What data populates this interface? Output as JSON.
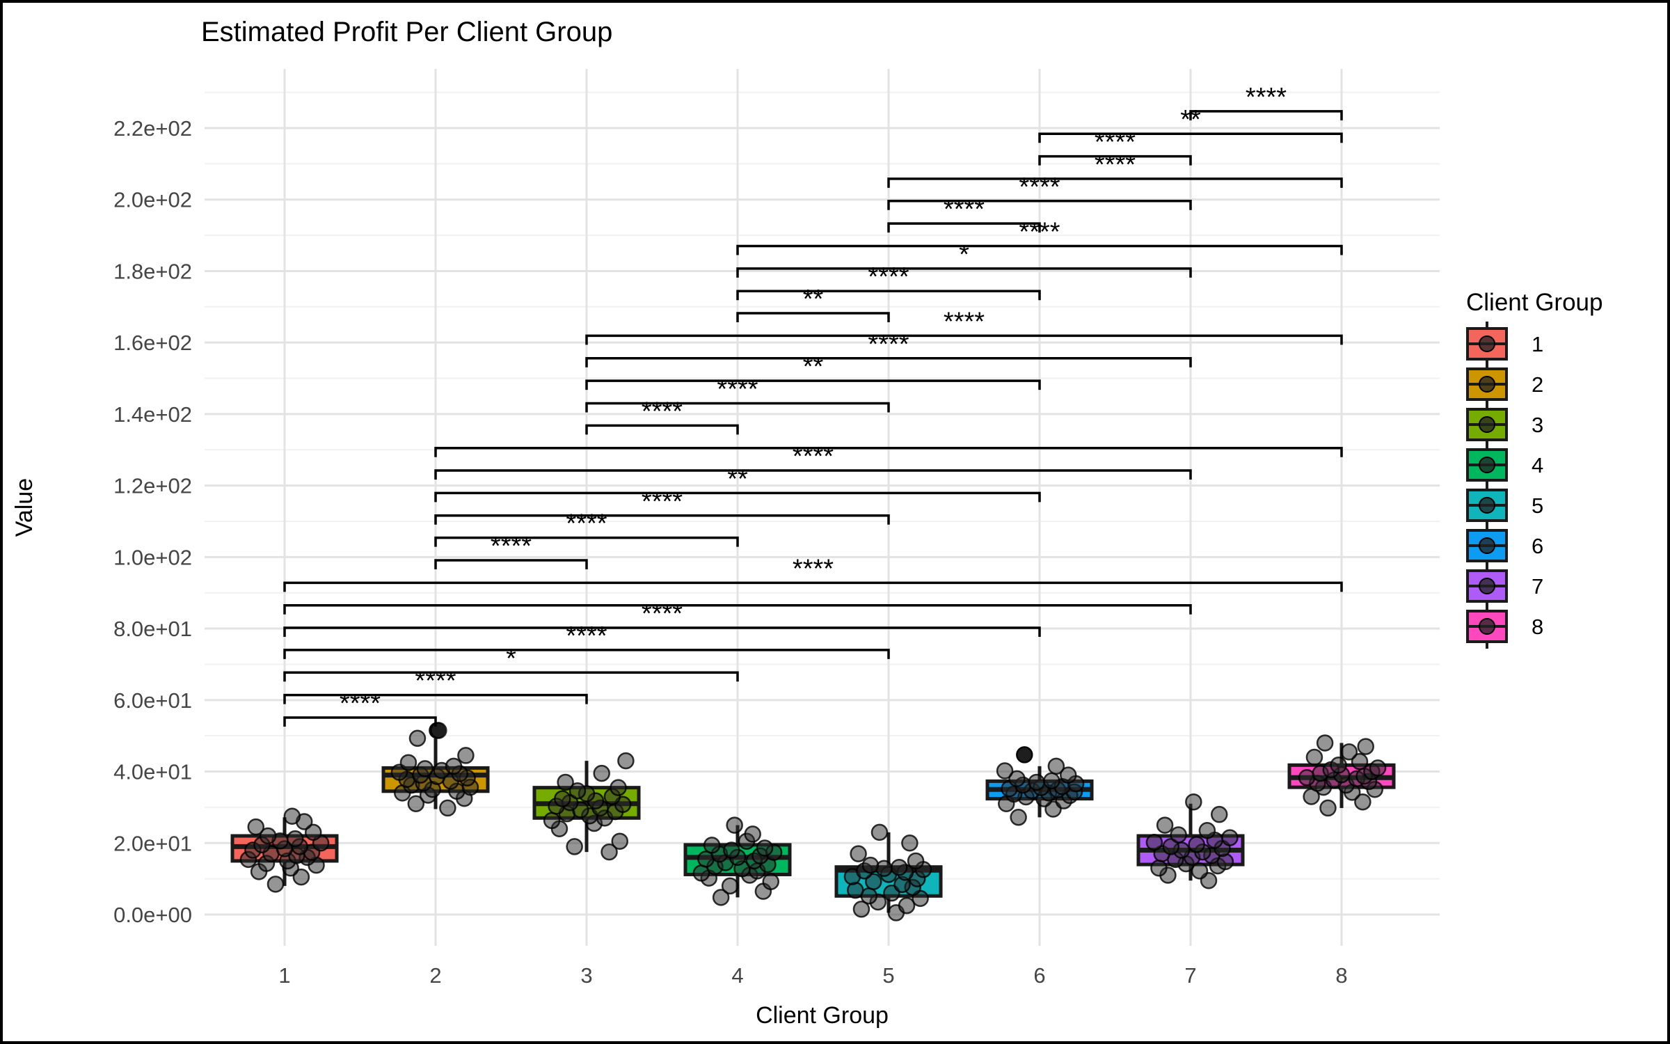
{
  "title": "Estimated Profit Per Client Group",
  "x_axis": {
    "label": "Client Group",
    "ticks": [
      "1",
      "2",
      "3",
      "4",
      "5",
      "6",
      "7",
      "8"
    ]
  },
  "y_axis": {
    "label": "Value",
    "tick_values": [
      0,
      20,
      40,
      60,
      80,
      100,
      120,
      140,
      160,
      180,
      200,
      220
    ],
    "tick_labels": [
      "0.0e+00",
      "2.0e+01",
      "4.0e+01",
      "6.0e+01",
      "8.0e+01",
      "1.0e+02",
      "1.2e+02",
      "1.4e+02",
      "1.6e+02",
      "1.8e+02",
      "2.0e+02",
      "2.2e+02"
    ]
  },
  "legend": {
    "title": "Client Group",
    "items": [
      {
        "label": "1",
        "color": "#F4655C"
      },
      {
        "label": "2",
        "color": "#CD9600"
      },
      {
        "label": "3",
        "color": "#76AB00"
      },
      {
        "label": "4",
        "color": "#00B65E"
      },
      {
        "label": "5",
        "color": "#0FB5BA"
      },
      {
        "label": "6",
        "color": "#0D9CF2"
      },
      {
        "label": "7",
        "color": "#AE5BF7"
      },
      {
        "label": "8",
        "color": "#FF47BE"
      }
    ]
  },
  "chart_data": {
    "type": "boxplot+jitter",
    "title": "Estimated Profit Per Client Group",
    "xlabel": "Client Group",
    "ylabel": "Value",
    "ylim": [
      -9,
      236.5
    ],
    "grid": {
      "major_step": 20,
      "minor_step": 10
    },
    "categories": [
      "1",
      "2",
      "3",
      "4",
      "5",
      "6",
      "7",
      "8"
    ],
    "groups": [
      {
        "name": "1",
        "color": "#F4655C",
        "whisker_lo": 8,
        "q1": 15,
        "median": 19,
        "q3": 22,
        "whisker_hi": 27.2,
        "outliers": [],
        "dx": [
          -0.06,
          0.11,
          -0.17,
          0.04,
          0.21,
          -0.12,
          0.02,
          -0.24,
          0.15,
          0.08,
          -0.09,
          0.18,
          -0.21,
          0.0,
          0.1,
          -0.15,
          0.24,
          -0.03,
          0.07,
          -0.11,
          0.19,
          -0.19,
          0.13,
          0.05
        ],
        "points": [
          8.5,
          10.5,
          12,
          13,
          13.8,
          14.3,
          15,
          15.4,
          16,
          16.5,
          17,
          17.4,
          18,
          18.4,
          19,
          19.5,
          20,
          20.6,
          21.2,
          22,
          23,
          24.5,
          26,
          27.5
        ]
      },
      {
        "name": "2",
        "color": "#CD9600",
        "whisker_lo": 29.5,
        "q1": 34.5,
        "median": 39,
        "q3": 41,
        "whisker_hi": 49.3,
        "outliers": [
          {
            "dx": 0.01,
            "v": 51.5
          }
        ],
        "dx": [
          0.08,
          -0.13,
          0.19,
          -0.05,
          -0.22,
          0.14,
          -0.02,
          0.23,
          -0.16,
          -0.08,
          0.1,
          -0.19,
          0.21,
          0.01,
          -0.1,
          0.16,
          -0.24,
          0.04,
          -0.07,
          0.12,
          -0.18,
          0.2,
          -0.12,
          0.02
        ],
        "points": [
          29.8,
          31,
          32.5,
          33.4,
          34,
          34.5,
          35,
          35.6,
          36.2,
          36.8,
          37.3,
          37.8,
          38.2,
          38.6,
          39,
          39.4,
          39.8,
          40.3,
          40.8,
          41.5,
          42.5,
          44.5,
          49.3,
          51.5
        ]
      },
      {
        "name": "3",
        "color": "#76AB00",
        "whisker_lo": 17.5,
        "q1": 27,
        "median": 31,
        "q3": 35.5,
        "whisker_hi": 43,
        "outliers": [],
        "dx": [
          0.15,
          -0.08,
          0.22,
          -0.18,
          0.05,
          -0.23,
          0.12,
          0.02,
          -0.13,
          0.19,
          -0.04,
          0.09,
          -0.2,
          0.24,
          -0.11,
          0.06,
          -0.16,
          0.17,
          0.0,
          -0.06,
          0.21,
          -0.14,
          0.1,
          0.26
        ],
        "points": [
          17.5,
          19,
          20.5,
          24,
          25.5,
          26.3,
          27,
          27.6,
          28.2,
          28.8,
          29.3,
          29.8,
          30.3,
          30.8,
          31.3,
          31.8,
          32.4,
          33,
          33.8,
          34.6,
          35.5,
          37,
          39.5,
          43
        ]
      },
      {
        "name": "4",
        "color": "#00B65E",
        "whisker_lo": 4.8,
        "q1": 11.2,
        "median": 16,
        "q3": 19.5,
        "whisker_hi": 25,
        "outliers": [],
        "dx": [
          -0.11,
          0.17,
          -0.05,
          0.22,
          -0.19,
          0.08,
          -0.24,
          0.13,
          0.03,
          -0.15,
          0.2,
          -0.08,
          0.11,
          -0.21,
          0.0,
          0.15,
          -0.12,
          0.24,
          -0.04,
          0.18,
          -0.17,
          0.06,
          0.1,
          -0.02
        ],
        "points": [
          4.8,
          6.5,
          8,
          9.2,
          10.2,
          11,
          11.6,
          12.2,
          12.8,
          13.4,
          14,
          14.5,
          15,
          15.5,
          16,
          16.4,
          16.9,
          17.4,
          18,
          18.6,
          19.4,
          20.5,
          22.5,
          25
        ]
      },
      {
        "name": "5",
        "color": "#0FB5BA",
        "whisker_lo": 0.5,
        "q1": 5.2,
        "median": 12.4,
        "q3": 13.3,
        "whisker_hi": 23,
        "outliers": [],
        "dx": [
          0.05,
          -0.18,
          0.12,
          -0.07,
          0.21,
          -0.13,
          0.02,
          -0.22,
          0.16,
          0.09,
          -0.1,
          0.19,
          -0.24,
          0.0,
          0.11,
          -0.16,
          0.23,
          -0.03,
          0.07,
          -0.12,
          0.18,
          -0.2,
          0.14,
          -0.06
        ],
        "points": [
          0.5,
          1.5,
          2.5,
          3.5,
          4.5,
          5.2,
          6,
          6.8,
          7.6,
          8.4,
          9.2,
          10,
          10.6,
          11.2,
          11.8,
          12.2,
          12.6,
          12.9,
          13.2,
          13.8,
          15,
          17,
          20,
          23
        ]
      },
      {
        "name": "6",
        "color": "#0D9CF2",
        "whisker_lo": 27.2,
        "q1": 32.4,
        "median": 35,
        "q3": 37.3,
        "whisker_hi": 41.5,
        "outliers": [
          {
            "dx": -0.1,
            "v": 44.7
          }
        ],
        "dx": [
          -0.14,
          0.09,
          -0.22,
          0.16,
          0.03,
          -0.09,
          0.2,
          -0.17,
          0.06,
          0.23,
          -0.05,
          0.12,
          -0.2,
          0.01,
          0.15,
          -0.11,
          0.24,
          -0.02,
          0.08,
          -0.15,
          0.19,
          -0.23,
          0.11,
          -0.1
        ],
        "points": [
          27.2,
          29.5,
          31,
          31.8,
          32.4,
          32.9,
          33.3,
          33.7,
          34,
          34.3,
          34.6,
          34.9,
          35.2,
          35.5,
          35.8,
          36.2,
          36.6,
          37,
          37.4,
          38,
          39,
          40.2,
          41.5,
          44.7
        ]
      },
      {
        "name": "7",
        "color": "#AE5BF7",
        "whisker_lo": 9.5,
        "q1": 14,
        "median": 18,
        "q3": 22,
        "whisker_hi": 31,
        "outliers": [],
        "dx": [
          0.12,
          -0.15,
          0.06,
          -0.21,
          0.18,
          -0.03,
          0.23,
          -0.1,
          0.01,
          0.14,
          -0.19,
          0.08,
          -0.06,
          0.21,
          -0.13,
          0.04,
          -0.24,
          0.16,
          0.26,
          -0.08,
          0.11,
          -0.17,
          0.19,
          0.02
        ],
        "points": [
          9.5,
          11,
          12.2,
          13,
          13.6,
          14.2,
          14.8,
          15.4,
          16,
          16.5,
          17,
          17.5,
          18,
          18.5,
          19,
          19.6,
          20.2,
          20.8,
          21.5,
          22.3,
          23.5,
          25,
          28,
          31.5
        ]
      },
      {
        "name": "8",
        "color": "#FF47BE",
        "whisker_lo": 29.8,
        "q1": 35.6,
        "median": 38.3,
        "q3": 41.8,
        "whisker_hi": 48,
        "outliers": [],
        "dx": [
          -0.09,
          0.14,
          -0.2,
          0.07,
          0.22,
          -0.12,
          0.03,
          -0.16,
          0.18,
          -0.05,
          0.1,
          -0.23,
          0.15,
          0.0,
          -0.14,
          0.2,
          -0.07,
          0.24,
          -0.02,
          0.12,
          -0.18,
          0.05,
          0.16,
          -0.11
        ],
        "points": [
          29.8,
          31.5,
          33,
          34.2,
          35,
          35.6,
          36.2,
          36.7,
          37.2,
          37.6,
          38,
          38.3,
          38.7,
          39.1,
          39.5,
          40,
          40.5,
          41,
          41.8,
          42.8,
          44,
          45.5,
          47,
          48
        ]
      }
    ],
    "significance_brackets": [
      {
        "a": 1,
        "b": 2,
        "y": 55.1,
        "label": "****"
      },
      {
        "a": 1,
        "b": 3,
        "y": 61.4,
        "label": "****"
      },
      {
        "a": 1,
        "b": 4,
        "y": 67.7,
        "label": "*"
      },
      {
        "a": 1,
        "b": 5,
        "y": 74.0,
        "label": "****"
      },
      {
        "a": 1,
        "b": 6,
        "y": 80.2,
        "label": "****"
      },
      {
        "a": 1,
        "b": 7,
        "y": 86.5,
        "label": ""
      },
      {
        "a": 1,
        "b": 8,
        "y": 92.8,
        "label": "****"
      },
      {
        "a": 2,
        "b": 3,
        "y": 99.1,
        "label": "****"
      },
      {
        "a": 2,
        "b": 4,
        "y": 105.4,
        "label": "****"
      },
      {
        "a": 2,
        "b": 5,
        "y": 111.6,
        "label": "****"
      },
      {
        "a": 2,
        "b": 6,
        "y": 117.9,
        "label": "**"
      },
      {
        "a": 2,
        "b": 7,
        "y": 124.2,
        "label": "****"
      },
      {
        "a": 2,
        "b": 8,
        "y": 130.5,
        "label": ""
      },
      {
        "a": 3,
        "b": 4,
        "y": 136.8,
        "label": "****"
      },
      {
        "a": 3,
        "b": 5,
        "y": 143.0,
        "label": "****"
      },
      {
        "a": 3,
        "b": 6,
        "y": 149.3,
        "label": "**"
      },
      {
        "a": 3,
        "b": 7,
        "y": 155.6,
        "label": "****"
      },
      {
        "a": 3,
        "b": 8,
        "y": 161.9,
        "label": "****"
      },
      {
        "a": 4,
        "b": 5,
        "y": 168.2,
        "label": "**"
      },
      {
        "a": 4,
        "b": 6,
        "y": 174.4,
        "label": "****"
      },
      {
        "a": 4,
        "b": 7,
        "y": 180.7,
        "label": "*"
      },
      {
        "a": 4,
        "b": 8,
        "y": 187.0,
        "label": "****"
      },
      {
        "a": 5,
        "b": 6,
        "y": 193.3,
        "label": "****"
      },
      {
        "a": 5,
        "b": 7,
        "y": 199.6,
        "label": "****"
      },
      {
        "a": 5,
        "b": 8,
        "y": 205.8,
        "label": "****"
      },
      {
        "a": 6,
        "b": 7,
        "y": 212.1,
        "label": "****"
      },
      {
        "a": 6,
        "b": 8,
        "y": 218.4,
        "label": "**"
      },
      {
        "a": 7,
        "b": 8,
        "y": 224.7,
        "label": "****"
      }
    ],
    "legend_position": "right"
  },
  "style": {
    "grid_major_color": "#E3E3E3",
    "grid_minor_color": "#F1F1F1",
    "axis_text_color": "#454545",
    "title_color": "#000000",
    "point_fill": "#2b2b2b",
    "box_stroke": "#1a1a1a"
  }
}
